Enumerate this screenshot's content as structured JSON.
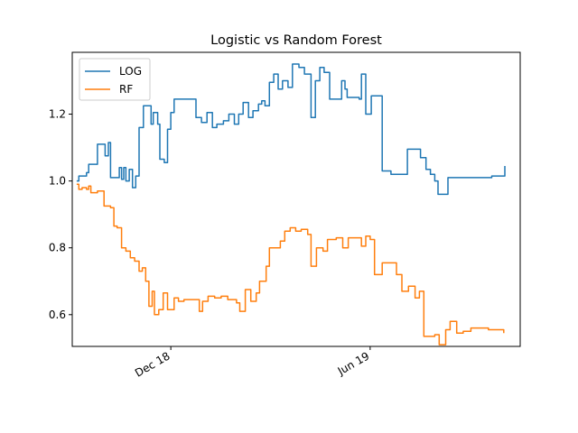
{
  "chart_data": {
    "type": "line",
    "title": "Logistic vs Random Forest",
    "xlabel": "",
    "ylabel": "",
    "x_axis": {
      "type": "date",
      "range": [
        "2018-09-02",
        "2019-10-16"
      ],
      "ticks": [
        {
          "date": "2018-12-01",
          "label": "Dec 18"
        },
        {
          "date": "2019-06-01",
          "label": "Jun 19"
        }
      ]
    },
    "y_axis": {
      "range": [
        0.505,
        1.385
      ],
      "ticks": [
        {
          "value": 0.6,
          "label": "0.6"
        },
        {
          "value": 0.8,
          "label": "0.8"
        },
        {
          "value": 1.0,
          "label": "1.0"
        },
        {
          "value": 1.2,
          "label": "1.2"
        }
      ]
    },
    "grid": false,
    "legend": {
      "position": "top-left"
    },
    "series": [
      {
        "name": "LOG",
        "color": "#1f77b4",
        "points": [
          [
            "2018-09-06",
            1.0
          ],
          [
            "2018-09-08",
            1.015
          ],
          [
            "2018-09-14",
            1.015
          ],
          [
            "2018-09-15",
            1.025
          ],
          [
            "2018-09-17",
            1.05
          ],
          [
            "2018-09-24",
            1.05
          ],
          [
            "2018-09-25",
            1.11
          ],
          [
            "2018-09-29",
            1.11
          ],
          [
            "2018-10-02",
            1.075
          ],
          [
            "2018-10-05",
            1.115
          ],
          [
            "2018-10-07",
            1.01
          ],
          [
            "2018-10-13",
            1.01
          ],
          [
            "2018-10-15",
            1.04
          ],
          [
            "2018-10-17",
            1.005
          ],
          [
            "2018-10-19",
            1.04
          ],
          [
            "2018-10-21",
            1.0
          ],
          [
            "2018-10-24",
            1.035
          ],
          [
            "2018-10-27",
            0.98
          ],
          [
            "2018-10-30",
            1.015
          ],
          [
            "2018-11-02",
            1.16
          ],
          [
            "2018-11-06",
            1.225
          ],
          [
            "2018-11-11",
            1.225
          ],
          [
            "2018-11-13",
            1.17
          ],
          [
            "2018-11-15",
            1.205
          ],
          [
            "2018-11-19",
            1.17
          ],
          [
            "2018-11-21",
            1.065
          ],
          [
            "2018-11-25",
            1.055
          ],
          [
            "2018-11-28",
            1.155
          ],
          [
            "2018-12-01",
            1.205
          ],
          [
            "2018-12-04",
            1.245
          ],
          [
            "2018-12-22",
            1.245
          ],
          [
            "2018-12-24",
            1.19
          ],
          [
            "2018-12-29",
            1.175
          ],
          [
            "2019-01-03",
            1.205
          ],
          [
            "2019-01-08",
            1.16
          ],
          [
            "2019-01-12",
            1.17
          ],
          [
            "2019-01-18",
            1.18
          ],
          [
            "2019-01-23",
            1.2
          ],
          [
            "2019-01-28",
            1.17
          ],
          [
            "2019-02-01",
            1.2
          ],
          [
            "2019-02-05",
            1.235
          ],
          [
            "2019-02-10",
            1.19
          ],
          [
            "2019-02-14",
            1.21
          ],
          [
            "2019-02-19",
            1.23
          ],
          [
            "2019-02-22",
            1.24
          ],
          [
            "2019-02-25",
            1.225
          ],
          [
            "2019-03-01",
            1.295
          ],
          [
            "2019-03-05",
            1.32
          ],
          [
            "2019-03-09",
            1.275
          ],
          [
            "2019-03-13",
            1.3
          ],
          [
            "2019-03-18",
            1.28
          ],
          [
            "2019-03-22",
            1.35
          ],
          [
            "2019-03-28",
            1.34
          ],
          [
            "2019-04-02",
            1.32
          ],
          [
            "2019-04-06",
            1.32
          ],
          [
            "2019-04-08",
            1.19
          ],
          [
            "2019-04-12",
            1.3
          ],
          [
            "2019-04-16",
            1.34
          ],
          [
            "2019-04-20",
            1.325
          ],
          [
            "2019-04-25",
            1.245
          ],
          [
            "2019-05-04",
            1.245
          ],
          [
            "2019-05-06",
            1.3
          ],
          [
            "2019-05-09",
            1.275
          ],
          [
            "2019-05-11",
            1.25
          ],
          [
            "2019-05-22",
            1.245
          ],
          [
            "2019-05-24",
            1.32
          ],
          [
            "2019-05-28",
            1.2
          ],
          [
            "2019-06-02",
            1.255
          ],
          [
            "2019-06-08",
            1.255
          ],
          [
            "2019-06-12",
            1.03
          ],
          [
            "2019-06-20",
            1.02
          ],
          [
            "2019-07-02",
            1.02
          ],
          [
            "2019-07-05",
            1.095
          ],
          [
            "2019-07-14",
            1.095
          ],
          [
            "2019-07-17",
            1.07
          ],
          [
            "2019-07-22",
            1.035
          ],
          [
            "2019-07-26",
            1.02
          ],
          [
            "2019-07-30",
            1.0
          ],
          [
            "2019-08-02",
            0.96
          ],
          [
            "2019-08-09",
            0.96
          ],
          [
            "2019-08-11",
            1.01
          ],
          [
            "2019-09-20",
            1.015
          ],
          [
            "2019-10-01",
            1.015
          ],
          [
            "2019-10-02",
            1.045
          ]
        ]
      },
      {
        "name": "RF",
        "color": "#ff7f0e",
        "points": [
          [
            "2018-09-06",
            0.99
          ],
          [
            "2018-09-08",
            0.975
          ],
          [
            "2018-09-11",
            0.98
          ],
          [
            "2018-09-15",
            0.975
          ],
          [
            "2018-09-17",
            0.985
          ],
          [
            "2018-09-19",
            0.965
          ],
          [
            "2018-09-25",
            0.97
          ],
          [
            "2018-10-01",
            0.925
          ],
          [
            "2018-10-07",
            0.92
          ],
          [
            "2018-10-10",
            0.865
          ],
          [
            "2018-10-13",
            0.86
          ],
          [
            "2018-10-17",
            0.8
          ],
          [
            "2018-10-21",
            0.79
          ],
          [
            "2018-10-25",
            0.77
          ],
          [
            "2018-10-29",
            0.76
          ],
          [
            "2018-11-02",
            0.73
          ],
          [
            "2018-11-05",
            0.74
          ],
          [
            "2018-11-08",
            0.7
          ],
          [
            "2018-11-11",
            0.625
          ],
          [
            "2018-11-14",
            0.67
          ],
          [
            "2018-11-16",
            0.6
          ],
          [
            "2018-11-20",
            0.615
          ],
          [
            "2018-11-24",
            0.665
          ],
          [
            "2018-11-28",
            0.615
          ],
          [
            "2018-12-04",
            0.65
          ],
          [
            "2018-12-08",
            0.64
          ],
          [
            "2018-12-13",
            0.645
          ],
          [
            "2018-12-24",
            0.645
          ],
          [
            "2018-12-27",
            0.61
          ],
          [
            "2018-12-30",
            0.64
          ],
          [
            "2019-01-04",
            0.655
          ],
          [
            "2019-01-10",
            0.65
          ],
          [
            "2019-01-16",
            0.655
          ],
          [
            "2019-01-22",
            0.645
          ],
          [
            "2019-01-30",
            0.635
          ],
          [
            "2019-02-02",
            0.61
          ],
          [
            "2019-02-07",
            0.675
          ],
          [
            "2019-02-12",
            0.64
          ],
          [
            "2019-02-17",
            0.665
          ],
          [
            "2019-02-20",
            0.7
          ],
          [
            "2019-02-26",
            0.745
          ],
          [
            "2019-03-01",
            0.8
          ],
          [
            "2019-03-07",
            0.8
          ],
          [
            "2019-03-11",
            0.82
          ],
          [
            "2019-03-15",
            0.85
          ],
          [
            "2019-03-20",
            0.86
          ],
          [
            "2019-03-25",
            0.85
          ],
          [
            "2019-03-30",
            0.855
          ],
          [
            "2019-04-05",
            0.84
          ],
          [
            "2019-04-08",
            0.745
          ],
          [
            "2019-04-13",
            0.8
          ],
          [
            "2019-04-19",
            0.79
          ],
          [
            "2019-04-23",
            0.825
          ],
          [
            "2019-05-01",
            0.83
          ],
          [
            "2019-05-07",
            0.8
          ],
          [
            "2019-05-12",
            0.83
          ],
          [
            "2019-05-24",
            0.805
          ],
          [
            "2019-05-28",
            0.835
          ],
          [
            "2019-06-01",
            0.825
          ],
          [
            "2019-06-05",
            0.72
          ],
          [
            "2019-06-12",
            0.755
          ],
          [
            "2019-06-20",
            0.755
          ],
          [
            "2019-06-25",
            0.72
          ],
          [
            "2019-06-30",
            0.67
          ],
          [
            "2019-07-06",
            0.685
          ],
          [
            "2019-07-12",
            0.65
          ],
          [
            "2019-07-16",
            0.67
          ],
          [
            "2019-07-20",
            0.535
          ],
          [
            "2019-07-30",
            0.54
          ],
          [
            "2019-08-03",
            0.51
          ],
          [
            "2019-08-09",
            0.555
          ],
          [
            "2019-08-13",
            0.58
          ],
          [
            "2019-08-19",
            0.545
          ],
          [
            "2019-08-25",
            0.55
          ],
          [
            "2019-09-01",
            0.56
          ],
          [
            "2019-09-17",
            0.555
          ],
          [
            "2019-09-26",
            0.555
          ],
          [
            "2019-10-01",
            0.545
          ]
        ]
      }
    ]
  }
}
